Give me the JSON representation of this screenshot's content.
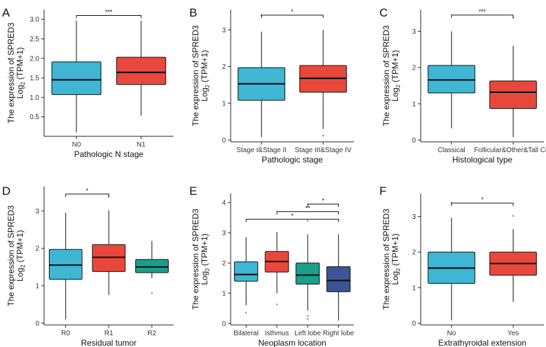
{
  "chart_data": [
    {
      "panel_letter": "A",
      "type": "box",
      "ylabel_line1": "The expression of SPRED3",
      "ylabel_line2_pre": "Log",
      "ylabel_line2_sub": "2",
      "ylabel_line2_post": " (TPM+1)",
      "xlabel": "Pathologic N stage",
      "ylim": [
        0.0,
        3.25
      ],
      "yticks": [
        "0.5",
        "1.0",
        "1.5",
        "2.0",
        "2.5",
        "3.0"
      ],
      "ytick_values": [
        0.5,
        1.0,
        1.5,
        2.0,
        2.5,
        3.0
      ],
      "categories": [
        "N0",
        "N1"
      ],
      "boxes": [
        {
          "color": "#3eb6d4",
          "whisker_low": 0.1,
          "q1": 1.07,
          "median": 1.45,
          "q3": 1.91,
          "whisker_high": 2.97,
          "outliers": []
        },
        {
          "color": "#e8483c",
          "whisker_low": 0.53,
          "q1": 1.33,
          "median": 1.64,
          "q3": 2.03,
          "whisker_high": 2.97,
          "outliers": []
        }
      ],
      "significance": [
        {
          "from": 0,
          "to": 1,
          "label": "***",
          "y": 3.1
        }
      ]
    },
    {
      "panel_letter": "B",
      "type": "box",
      "ylabel_line1": "The expression of SPRED3",
      "ylabel_line2_pre": "Log",
      "ylabel_line2_sub": "2",
      "ylabel_line2_post": " (TPM+1)",
      "xlabel": "Pathologic stage",
      "ylim": [
        -0.05,
        3.55
      ],
      "yticks": [
        "0",
        "1",
        "2",
        "3"
      ],
      "ytick_values": [
        0,
        1,
        2,
        3
      ],
      "categories": [
        "Stage I&Stage II",
        "Stage III&Stage IV"
      ],
      "boxes": [
        {
          "color": "#3eb6d4",
          "whisker_low": 0.08,
          "q1": 1.08,
          "median": 1.53,
          "q3": 1.97,
          "whisker_high": 2.95,
          "outliers": [
            3.4
          ]
        },
        {
          "color": "#e8483c",
          "whisker_low": 0.3,
          "q1": 1.3,
          "median": 1.68,
          "q3": 2.03,
          "whisker_high": 3.0,
          "outliers": [
            0.12
          ]
        }
      ],
      "significance": [
        {
          "from": 0,
          "to": 1,
          "label": "*",
          "y": 3.4
        }
      ]
    },
    {
      "panel_letter": "C",
      "type": "box",
      "ylabel_line1": "The expression of SPRED3",
      "ylabel_line2_pre": "Log",
      "ylabel_line2_sub": "2",
      "ylabel_line2_post": " (TPM+1)",
      "xlabel": "Histological type",
      "ylim": [
        -0.05,
        3.6
      ],
      "yticks": [
        "0",
        "1",
        "2",
        "3"
      ],
      "ytick_values": [
        0,
        1,
        2,
        3
      ],
      "categories": [
        "Classical",
        "Follicular&Other&Tall Cell"
      ],
      "boxes": [
        {
          "color": "#3eb6d4",
          "whisker_low": 0.32,
          "q1": 1.3,
          "median": 1.66,
          "q3": 2.06,
          "whisker_high": 3.0,
          "outliers": []
        },
        {
          "color": "#e8483c",
          "whisker_low": 0.08,
          "q1": 0.87,
          "median": 1.32,
          "q3": 1.63,
          "whisker_high": 2.6,
          "outliers": [
            3.38
          ]
        }
      ],
      "significance": [
        {
          "from": 0,
          "to": 1,
          "label": "***",
          "y": 3.45
        }
      ]
    },
    {
      "panel_letter": "D",
      "type": "box",
      "ylabel_line1": "The expression of SPRED3",
      "ylabel_line2_pre": "Log",
      "ylabel_line2_sub": "2",
      "ylabel_line2_post": " (TPM+1)",
      "xlabel": "Residual tumor",
      "ylim": [
        -0.05,
        3.65
      ],
      "yticks": [
        "0",
        "1",
        "2",
        "3"
      ],
      "ytick_values": [
        0,
        1,
        2,
        3
      ],
      "categories": [
        "R0",
        "R1",
        "R2"
      ],
      "boxes": [
        {
          "color": "#3eb6d4",
          "whisker_low": 0.1,
          "q1": 1.17,
          "median": 1.55,
          "q3": 1.97,
          "whisker_high": 2.95,
          "outliers": []
        },
        {
          "color": "#e8483c",
          "whisker_low": 0.75,
          "q1": 1.38,
          "median": 1.76,
          "q3": 2.1,
          "whisker_high": 3.02,
          "outliers": [
            3.38
          ]
        },
        {
          "color": "#1a9f8c",
          "whisker_low": 1.2,
          "q1": 1.35,
          "median": 1.5,
          "q3": 1.7,
          "whisker_high": 2.2,
          "outliers": [
            0.8
          ]
        }
      ],
      "significance": [
        {
          "from": 0,
          "to": 1,
          "label": "*",
          "y": 3.45
        }
      ]
    },
    {
      "panel_letter": "E",
      "type": "box",
      "ylabel_line1": "The expression of SPRED3",
      "ylabel_line2_pre": "Log",
      "ylabel_line2_sub": "2",
      "ylabel_line2_post": " (TPM+1)",
      "xlabel": "Neoplasm location",
      "ylim": [
        -0.05,
        4.3
      ],
      "yticks": [
        "0",
        "1",
        "2",
        "3",
        "4"
      ],
      "ytick_values": [
        0,
        1,
        2,
        3,
        4
      ],
      "categories": [
        "Bilateral",
        "Isthmus",
        "Left lobe",
        "Right lobe"
      ],
      "boxes": [
        {
          "color": "#3eb6d4",
          "whisker_low": 0.6,
          "q1": 1.4,
          "median": 1.62,
          "q3": 2.04,
          "whisker_high": 2.85,
          "outliers": [
            0.35
          ]
        },
        {
          "color": "#e8483c",
          "whisker_low": 1.0,
          "q1": 1.7,
          "median": 2.05,
          "q3": 2.38,
          "whisker_high": 3.02,
          "outliers": [
            0.63
          ]
        },
        {
          "color": "#1a9f8c",
          "whisker_low": 0.42,
          "q1": 1.3,
          "median": 1.6,
          "q3": 2.0,
          "whisker_high": 2.95,
          "outliers": [
            3.4,
            0.25,
            0.15
          ]
        },
        {
          "color": "#3b5495",
          "whisker_low": 0.1,
          "q1": 1.05,
          "median": 1.42,
          "q3": 1.88,
          "whisker_high": 2.95,
          "outliers": []
        }
      ],
      "significance": [
        {
          "from": 2,
          "to": 3,
          "label": "*",
          "y": 3.95
        },
        {
          "from": 1,
          "to": 3,
          "label": "**",
          "y": 3.7
        },
        {
          "from": 0,
          "to": 3,
          "label": "*",
          "y": 3.45
        }
      ]
    },
    {
      "panel_letter": "F",
      "type": "box",
      "ylabel_line1": "The expression of SPRED3",
      "ylabel_line2_pre": "Log",
      "ylabel_line2_sub": "2",
      "ylabel_line2_post": " (TPM+1)",
      "xlabel": "Extrathyroidal extension",
      "ylim": [
        -0.05,
        3.65
      ],
      "yticks": [
        "0",
        "1",
        "2",
        "3"
      ],
      "ytick_values": [
        0,
        1,
        2,
        3
      ],
      "categories": [
        "No",
        "Yes"
      ],
      "boxes": [
        {
          "color": "#3eb6d4",
          "whisker_low": 0.08,
          "q1": 1.12,
          "median": 1.55,
          "q3": 2.0,
          "whisker_high": 2.97,
          "outliers": [
            3.38
          ]
        },
        {
          "color": "#e8483c",
          "whisker_low": 0.6,
          "q1": 1.35,
          "median": 1.68,
          "q3": 2.0,
          "whisker_high": 2.65,
          "outliers": [
            3.02
          ]
        }
      ],
      "significance": [
        {
          "from": 0,
          "to": 1,
          "label": "*",
          "y": 3.38
        }
      ]
    }
  ]
}
